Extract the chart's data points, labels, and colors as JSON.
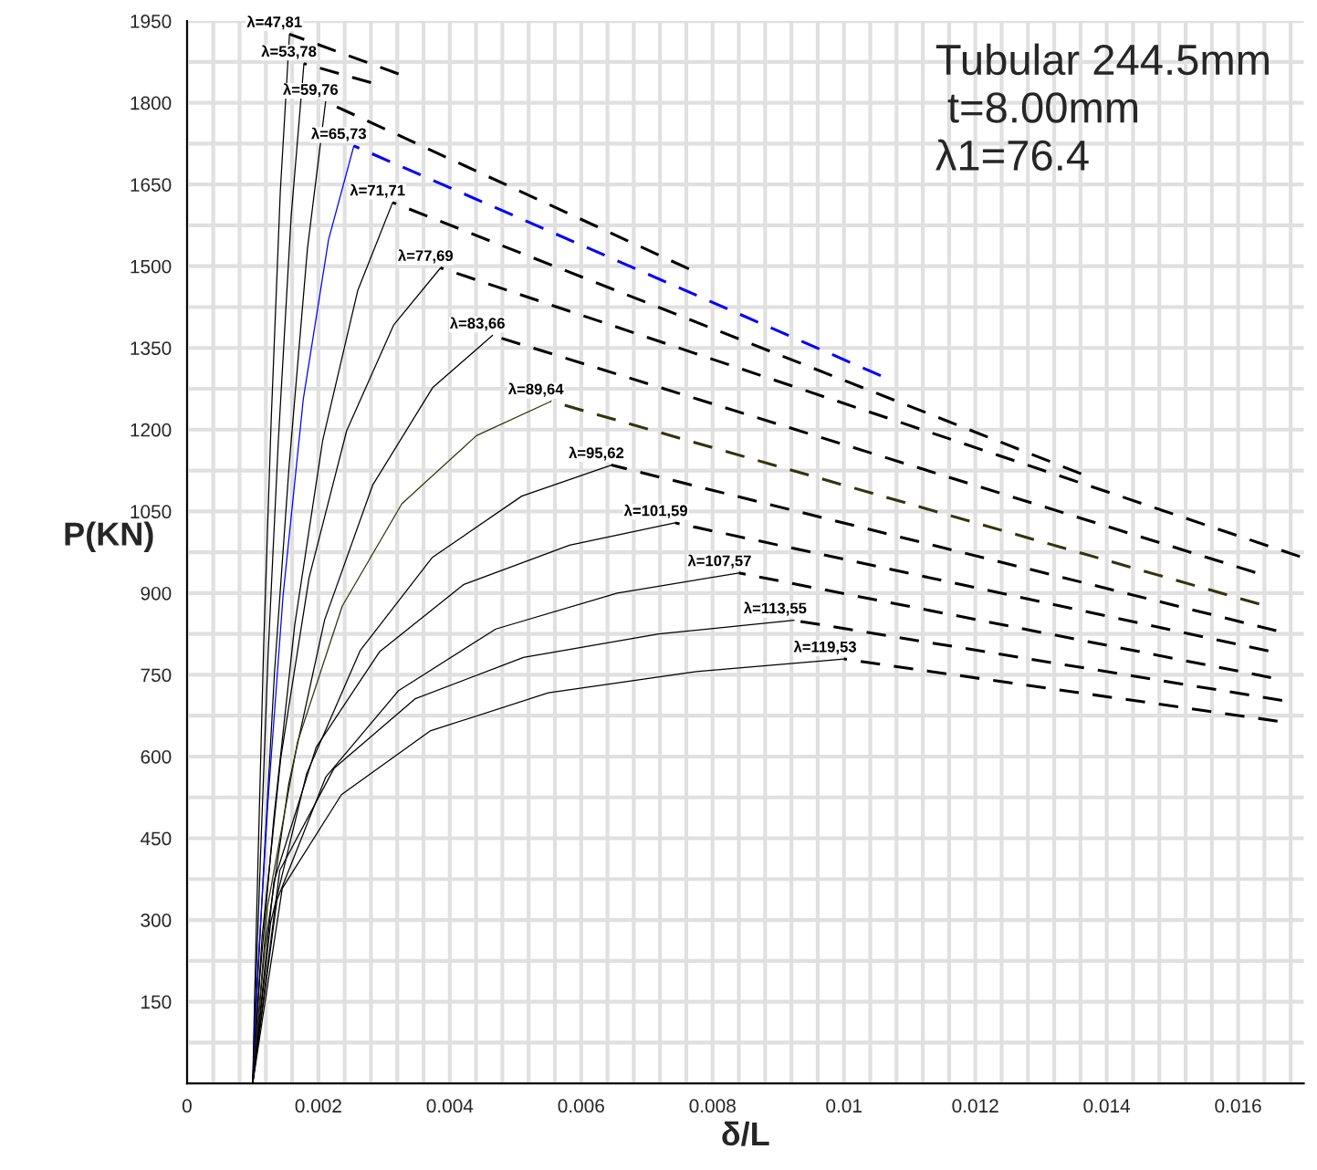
{
  "chart_data": {
    "type": "line",
    "xlabel": "δ/L",
    "ylabel": "P(KN)",
    "annotations": [
      "Tubular 244.5mm",
      " t=8.00mm",
      "λ1=76.4"
    ],
    "xlim": [
      0,
      0.017
    ],
    "ylim": [
      0,
      1950
    ],
    "grid": true,
    "legend": false,
    "marker": "none",
    "xticks": [
      0,
      {
        "value": 0.0004,
        "label": null
      },
      {
        "value": 0.0008,
        "label": null
      },
      {
        "value": 0.0012,
        "label": null
      },
      {
        "value": 0.0016,
        "label": null
      },
      0.002,
      {
        "value": 0.0024,
        "label": null
      },
      {
        "value": 0.0028,
        "label": null
      },
      {
        "value": 0.0032,
        "label": null
      },
      {
        "value": 0.0036,
        "label": null
      },
      0.004,
      {
        "value": 0.0044,
        "label": null
      },
      {
        "value": 0.0048,
        "label": null
      },
      {
        "value": 0.0052,
        "label": null
      },
      {
        "value": 0.0056,
        "label": null
      },
      0.006,
      {
        "value": 0.0064,
        "label": null
      },
      {
        "value": 0.0068,
        "label": null
      },
      {
        "value": 0.0072,
        "label": null
      },
      {
        "value": 0.0076,
        "label": null
      },
      0.008,
      {
        "value": 0.0084,
        "label": null
      },
      {
        "value": 0.0088,
        "label": null
      },
      {
        "value": 0.0092,
        "label": null
      },
      {
        "value": 0.0096,
        "label": null
      },
      0.01,
      {
        "value": 0.0104,
        "label": null
      },
      {
        "value": 0.0108,
        "label": null
      },
      {
        "value": 0.0112,
        "label": null
      },
      {
        "value": 0.0116,
        "label": null
      },
      0.012,
      {
        "value": 0.0124,
        "label": null
      },
      {
        "value": 0.0128,
        "label": null
      },
      {
        "value": 0.0132,
        "label": null
      },
      {
        "value": 0.0136,
        "label": null
      },
      0.014,
      {
        "value": 0.0144,
        "label": null
      },
      {
        "value": 0.0148,
        "label": null
      },
      {
        "value": 0.0152,
        "label": null
      },
      {
        "value": 0.0156,
        "label": null
      },
      0.016,
      {
        "value": 0.0164,
        "label": null
      },
      {
        "value": 0.0168,
        "label": null
      }
    ],
    "yticks": [
      {
        "value": 75,
        "label": null
      },
      150,
      {
        "value": 225,
        "label": null
      },
      300,
      {
        "value": 375,
        "label": null
      },
      450,
      {
        "value": 525,
        "label": null
      },
      600,
      {
        "value": 675,
        "label": null
      },
      750,
      {
        "value": 825,
        "label": null
      },
      900,
      {
        "value": 975,
        "label": null
      },
      1050,
      {
        "value": 1125,
        "label": null
      },
      1200,
      {
        "value": 1275,
        "label": null
      },
      1350,
      {
        "value": 1425,
        "label": null
      },
      1500,
      {
        "value": 1575,
        "label": null
      },
      1650,
      {
        "value": 1725,
        "label": null
      },
      1800,
      {
        "value": 1875,
        "label": null
      },
      1950
    ],
    "series": [
      {
        "name": "λ=47,81",
        "color": "#000000",
        "line_style": "solid",
        "x": [
          0.001,
          0.001028,
          0.001084,
          0.001168,
          0.00128,
          0.00142,
          0.00156
        ],
        "values": [
          0,
          154,
          424,
          809,
          1213,
          1637,
          1926
        ]
      },
      {
        "color": "#000000",
        "line_style": "dashed",
        "x": [
          0.00156,
          0.00322
        ],
        "values": [
          1926,
          1853
        ]
      },
      {
        "name": "λ=53,78",
        "color": "#000000",
        "line_style": "solid",
        "x": [
          0.001,
          0.001039,
          0.001117,
          0.001234,
          0.00139,
          0.001585,
          0.00178
        ],
        "values": [
          0,
          150,
          412,
          786,
          1179,
          1591,
          1872
        ]
      },
      {
        "color": "#000000",
        "line_style": "dashed",
        "x": [
          0.00178,
          0.0028
        ],
        "values": [
          1872,
          1837
        ]
      },
      {
        "name": "λ=59,76",
        "color": "#000000",
        "line_style": "solid",
        "x": [
          0.001,
          0.001056,
          0.001167,
          0.001333,
          0.001555,
          0.001833,
          0.00211
        ],
        "values": [
          0,
          144,
          396,
          757,
          1135,
          1532,
          1802
        ]
      },
      {
        "color": "#000000",
        "line_style": "dashed",
        "x": [
          0.00211,
          0.00764
        ],
        "values": [
          1802,
          1495
        ]
      },
      {
        "name": "λ=65,73",
        "color": "#0000ff",
        "line_style": "solid",
        "x": [
          0.001,
          0.001077,
          0.001231,
          0.001462,
          0.00177,
          0.002155,
          0.00254
        ],
        "values": [
          0,
          207,
          516,
          895,
          1256,
          1549,
          1721
        ]
      },
      {
        "color": "#0000ff",
        "line_style": "dashed",
        "x": [
          0.00254,
          0.01056
        ],
        "values": [
          1721,
          1299
        ]
      },
      {
        "name": "λ=71,71",
        "color": "#000000",
        "line_style": "solid",
        "x": [
          0.001,
          0.001107,
          0.00132,
          0.001639,
          0.002065,
          0.002598,
          0.00313
        ],
        "values": [
          0,
          194,
          485,
          841,
          1180,
          1455,
          1617
        ]
      },
      {
        "color": "#000000",
        "line_style": "dashed",
        "x": [
          0.00313,
          0.01361
        ],
        "values": [
          1617,
          1119
        ]
      },
      {
        "name": "λ=77,69",
        "color": "#000000",
        "line_style": "solid",
        "x": [
          0.001,
          0.001143,
          0.001429,
          0.001858,
          0.00243,
          0.003145,
          0.00386
        ],
        "values": [
          0,
          269,
          599,
          928,
          1198,
          1392,
          1497
        ]
      },
      {
        "color": "#000000",
        "line_style": "dashed",
        "x": [
          0.00386,
          0.01694
        ],
        "values": [
          1497,
          967
        ]
      },
      {
        "name": "λ=83,66",
        "color": "#000000",
        "line_style": "solid",
        "x": [
          0.001,
          0.001183,
          0.001548,
          0.002095,
          0.002825,
          0.003738,
          0.00465
        ],
        "values": [
          0,
          247,
          549,
          851,
          1098,
          1277,
          1373
        ]
      },
      {
        "color": "#000000",
        "line_style": "dashed",
        "x": [
          0.00465,
          0.01626
        ],
        "values": [
          1373,
          938
        ]
      },
      {
        "name": "λ=89,64",
        "color": "#33330a",
        "line_style": "solid",
        "x": [
          0.001,
          0.001227,
          0.001681,
          0.002362,
          0.00327,
          0.004405,
          0.00554
        ],
        "values": [
          0,
          326,
          626,
          876,
          1064,
          1189,
          1252
        ]
      },
      {
        "color": "#33330a",
        "line_style": "dashed",
        "x": [
          0.00554,
          0.01632
        ],
        "values": [
          1252,
          880
        ]
      },
      {
        "name": "λ=95,62",
        "color": "#000000",
        "line_style": "solid",
        "x": [
          0.001,
          0.001273,
          0.001819,
          0.002638,
          0.00373,
          0.005095,
          0.00646
        ],
        "values": [
          0,
          295,
          568,
          795,
          965,
          1078,
          1135
        ]
      },
      {
        "color": "#000000",
        "line_style": "dashed",
        "x": [
          0.00646,
          0.01658
        ],
        "values": [
          1135,
          831
        ]
      },
      {
        "name": "λ=101,59",
        "color": "#000000",
        "line_style": "solid",
        "x": [
          0.001,
          0.001322,
          0.001965,
          0.002929,
          0.004215,
          0.005823,
          0.00743
        ],
        "values": [
          0,
          370,
          617,
          792,
          916,
          988,
          1029
        ]
      },
      {
        "color": "#000000",
        "line_style": "dashed",
        "x": [
          0.00743,
          0.01646
        ],
        "values": [
          1029,
          794
        ]
      },
      {
        "name": "λ=107,57",
        "color": "#000000",
        "line_style": "solid",
        "x": [
          0.001,
          0.00137,
          0.00211,
          0.00322,
          0.0047,
          0.00655,
          0.0084
        ],
        "values": [
          0,
          337,
          562,
          721,
          834,
          900,
          937
        ]
      },
      {
        "color": "#000000",
        "line_style": "dashed",
        "x": [
          0.0084,
          0.0165
        ],
        "values": [
          937,
          745
        ]
      },
      {
        "name": "λ=113,55",
        "color": "#000000",
        "line_style": "solid",
        "x": [
          0.001,
          0.001412,
          0.002236,
          0.003472,
          0.00512,
          0.00718,
          0.00924
        ],
        "values": [
          0,
          391,
          578,
          706,
          782,
          825,
          850
        ]
      },
      {
        "color": "#000000",
        "line_style": "dashed",
        "x": [
          0.00924,
          0.01667
        ],
        "values": [
          850,
          703
        ]
      },
      {
        "name": "λ=119,53",
        "color": "#000000",
        "line_style": "solid",
        "x": [
          0.001,
          0.00145,
          0.00235,
          0.0037,
          0.0055,
          0.00775,
          0.01
        ],
        "values": [
          0,
          358,
          530,
          647,
          717,
          756,
          779
        ]
      },
      {
        "color": "#000000",
        "line_style": "dashed",
        "x": [
          0.01,
          0.0166
        ],
        "values": [
          779,
          665
        ]
      }
    ]
  }
}
